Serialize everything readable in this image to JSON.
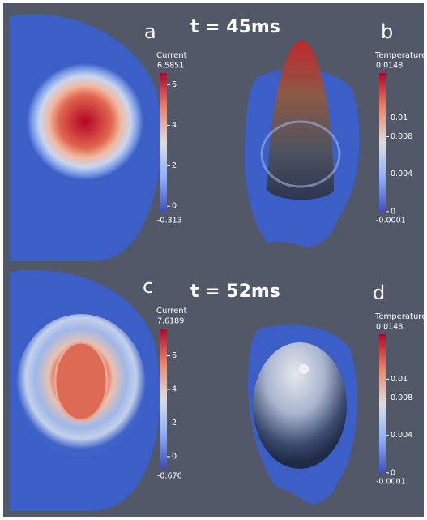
{
  "times": [
    "t = 45ms",
    "t = 52ms"
  ],
  "panels": [
    {
      "label": "a",
      "colorbar": {
        "title": "Current",
        "max": 6.5851,
        "min": -0.313,
        "ticks": [
          6,
          4,
          2,
          0
        ]
      }
    },
    {
      "label": "b",
      "colorbar": {
        "title": "Temperature",
        "max": 0.0148,
        "min": -0.0001,
        "ticks": [
          0.01,
          0.008,
          0.004,
          0
        ]
      }
    },
    {
      "label": "c",
      "colorbar": {
        "title": "Current",
        "max": 7.6189,
        "min": -0.676,
        "ticks": [
          6,
          4,
          2,
          0
        ]
      }
    },
    {
      "label": "d",
      "colorbar": {
        "title": "Temperature",
        "max": 0.0148,
        "min": -0.0001,
        "ticks": [
          0.01,
          0.008,
          0.004,
          0
        ]
      }
    }
  ]
}
